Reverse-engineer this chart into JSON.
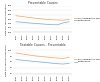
{
  "title_top": "Preventable Causes",
  "title_bottom": "Treatable Causes - Preventable",
  "years": [
    2011,
    2012,
    2013,
    2014,
    2015,
    2016,
    2017,
    2018,
    2019,
    2020
  ],
  "top": {
    "ylabel": "Rate per 100,000 population",
    "eu_values": [
      175,
      172,
      168,
      165,
      162,
      159,
      157,
      156,
      155,
      158
    ],
    "nl_values": [
      148,
      146,
      143,
      141,
      139,
      137,
      135,
      134,
      143,
      148
    ],
    "ylim": [
      100,
      220
    ],
    "yticks": [
      100,
      120,
      140,
      160,
      180,
      200,
      220
    ]
  },
  "bottom": {
    "ylabel": "Rate per 100,000 population",
    "eu_values": [
      90,
      87,
      84,
      81,
      79,
      77,
      75,
      73,
      72,
      75
    ],
    "nl_values": [
      68,
      66,
      64,
      62,
      60,
      58,
      56,
      54,
      53,
      55
    ],
    "ylim": [
      20,
      110
    ],
    "yticks": [
      20,
      40,
      60,
      80,
      100
    ]
  },
  "eu_color": "#f4a460",
  "nl_color": "#6baed6",
  "eu_label": "EU (unweighted average) per 100,000",
  "nl_label": "Netherlands",
  "linewidth": 0.5,
  "title_fontsize": 2.2,
  "label_fontsize": 1.6,
  "tick_fontsize": 1.5,
  "legend_fontsize": 1.5,
  "background_color": "#ffffff"
}
